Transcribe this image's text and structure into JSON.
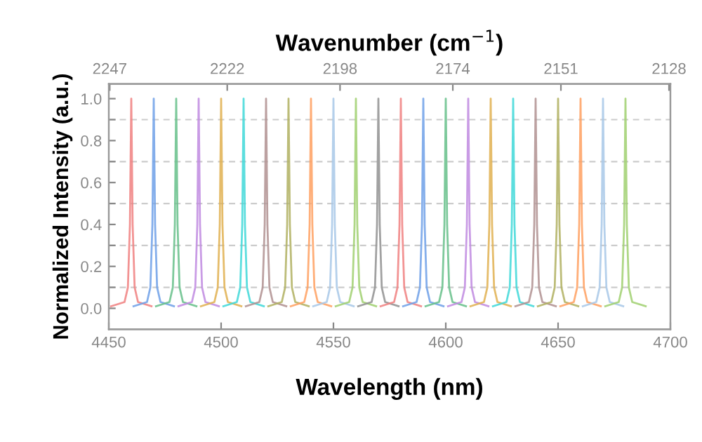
{
  "chart_data": {
    "type": "line",
    "xlabel": "Wavelength (nm)",
    "ylabel": "Normalized Intensity (a.u.)",
    "x2label": "Wavenumber (cm$^{−1}$)",
    "xlim": [
      4450,
      4700
    ],
    "xticks": [
      4450,
      4500,
      4550,
      4600,
      4650,
      4700
    ],
    "x2lim": [
      2247.2,
      2127.7
    ],
    "x2ticks": [
      2247,
      2222,
      2198,
      2174,
      2151,
      2128
    ],
    "ylim": [
      -0.1,
      1.07
    ],
    "yticks": [
      {
        "value": 0,
        "label": "0.0"
      },
      {
        "value": 0.1,
        "label": null
      },
      0.2,
      {
        "value": 0.3,
        "label": null
      },
      0.4,
      {
        "value": 0.5,
        "label": null
      },
      0.6,
      {
        "value": 0.7,
        "label": null
      },
      0.8,
      {
        "value": 0.9,
        "label": null
      },
      {
        "value": 1,
        "label": "1.0"
      }
    ],
    "grid": "y",
    "legend": false,
    "marker": "none",
    "line_style": "solid",
    "series": [
      {
        "color": "#f08080",
        "x": [
          4451,
          4457,
          4458.5,
          4459.4,
          4460,
          4460.6,
          4461.5,
          4463,
          4469
        ],
        "values": [
          0.01,
          0.03,
          0.1,
          0.4,
          1,
          0.4,
          0.1,
          0.03,
          0.01
        ]
      },
      {
        "color": "#6fa0e8",
        "x": [
          4461,
          4467,
          4468.5,
          4469.4,
          4470,
          4470.6,
          4471.5,
          4473,
          4479
        ],
        "values": [
          0.01,
          0.03,
          0.1,
          0.4,
          1,
          0.4,
          0.1,
          0.03,
          0.01
        ]
      },
      {
        "color": "#66c08a",
        "x": [
          4471,
          4477,
          4478.5,
          4479.4,
          4480,
          4480.6,
          4481.5,
          4483,
          4489
        ],
        "values": [
          0.01,
          0.03,
          0.1,
          0.4,
          1,
          0.4,
          0.1,
          0.03,
          0.01
        ]
      },
      {
        "color": "#c08ae0",
        "x": [
          4481,
          4487,
          4488.5,
          4489.4,
          4490,
          4490.6,
          4491.5,
          4493,
          4499
        ],
        "values": [
          0.01,
          0.03,
          0.1,
          0.4,
          1,
          0.4,
          0.1,
          0.03,
          0.01
        ]
      },
      {
        "color": "#e0b050",
        "x": [
          4491,
          4497,
          4498.5,
          4499.4,
          4500,
          4500.6,
          4501.5,
          4503,
          4509
        ],
        "values": [
          0.01,
          0.03,
          0.1,
          0.4,
          1,
          0.4,
          0.1,
          0.03,
          0.01
        ]
      },
      {
        "color": "#40d8d8",
        "x": [
          4501,
          4507,
          4508.5,
          4509.4,
          4510,
          4510.6,
          4511.5,
          4513,
          4519
        ],
        "values": [
          0.01,
          0.03,
          0.1,
          0.4,
          1,
          0.4,
          0.1,
          0.03,
          0.01
        ]
      },
      {
        "color": "#b09090",
        "x": [
          4511,
          4517,
          4518.5,
          4519.4,
          4520,
          4520.6,
          4521.5,
          4523,
          4529
        ],
        "values": [
          0.01,
          0.03,
          0.1,
          0.4,
          1,
          0.4,
          0.1,
          0.03,
          0.01
        ]
      },
      {
        "color": "#b0b060",
        "x": [
          4521,
          4527,
          4528.5,
          4529.4,
          4530,
          4530.6,
          4531.5,
          4533,
          4539
        ],
        "values": [
          0.01,
          0.03,
          0.1,
          0.4,
          1,
          0.4,
          0.1,
          0.03,
          0.01
        ]
      },
      {
        "color": "#ffa060",
        "x": [
          4531,
          4537,
          4538.5,
          4539.4,
          4540,
          4540.6,
          4541.5,
          4543,
          4549
        ],
        "values": [
          0.01,
          0.03,
          0.1,
          0.4,
          1,
          0.4,
          0.1,
          0.03,
          0.01
        ]
      },
      {
        "color": "#a8c8e8",
        "x": [
          4541,
          4547,
          4548.5,
          4549.4,
          4550,
          4550.6,
          4551.5,
          4553,
          4559
        ],
        "values": [
          0.01,
          0.03,
          0.1,
          0.4,
          1,
          0.4,
          0.1,
          0.03,
          0.01
        ]
      },
      {
        "color": "#a0d070",
        "x": [
          4551,
          4557,
          4558.5,
          4559.4,
          4560,
          4560.6,
          4561.5,
          4563,
          4569
        ],
        "values": [
          0.01,
          0.03,
          0.1,
          0.4,
          1,
          0.4,
          0.1,
          0.03,
          0.01
        ]
      },
      {
        "color": "#909090",
        "x": [
          4561,
          4567,
          4568.5,
          4569.4,
          4570,
          4570.6,
          4571.5,
          4573,
          4579
        ],
        "values": [
          0.01,
          0.03,
          0.1,
          0.4,
          1,
          0.4,
          0.1,
          0.03,
          0.01
        ]
      },
      {
        "color": "#f08080",
        "x": [
          4571,
          4577,
          4578.5,
          4579.4,
          4580,
          4580.6,
          4581.5,
          4583,
          4589
        ],
        "values": [
          0.01,
          0.03,
          0.1,
          0.4,
          1,
          0.4,
          0.1,
          0.03,
          0.01
        ]
      },
      {
        "color": "#6fa0e8",
        "x": [
          4581,
          4587,
          4588.5,
          4589.4,
          4590,
          4590.6,
          4591.5,
          4593,
          4599
        ],
        "values": [
          0.01,
          0.03,
          0.1,
          0.4,
          1,
          0.4,
          0.1,
          0.03,
          0.01
        ]
      },
      {
        "color": "#66c08a",
        "x": [
          4591,
          4597,
          4598.5,
          4599.4,
          4600,
          4600.6,
          4601.5,
          4603,
          4609
        ],
        "values": [
          0.01,
          0.03,
          0.1,
          0.4,
          1,
          0.4,
          0.1,
          0.03,
          0.01
        ]
      },
      {
        "color": "#c08ae0",
        "x": [
          4601,
          4607,
          4608.5,
          4609.4,
          4610,
          4610.6,
          4611.5,
          4613,
          4619
        ],
        "values": [
          0.01,
          0.03,
          0.1,
          0.4,
          1,
          0.4,
          0.1,
          0.03,
          0.01
        ]
      },
      {
        "color": "#e0b050",
        "x": [
          4611,
          4617,
          4618.5,
          4619.4,
          4620,
          4620.6,
          4621.5,
          4623,
          4629
        ],
        "values": [
          0.01,
          0.03,
          0.1,
          0.4,
          1,
          0.4,
          0.1,
          0.03,
          0.01
        ]
      },
      {
        "color": "#40d8d8",
        "x": [
          4621,
          4627,
          4628.5,
          4629.4,
          4630,
          4630.6,
          4631.5,
          4633,
          4639
        ],
        "values": [
          0.01,
          0.03,
          0.1,
          0.4,
          1,
          0.4,
          0.1,
          0.03,
          0.01
        ]
      },
      {
        "color": "#b09090",
        "x": [
          4631,
          4637,
          4638.5,
          4639.4,
          4640,
          4640.6,
          4641.5,
          4643,
          4649
        ],
        "values": [
          0.01,
          0.03,
          0.1,
          0.4,
          1,
          0.4,
          0.1,
          0.03,
          0.01
        ]
      },
      {
        "color": "#b0b060",
        "x": [
          4641,
          4647,
          4648.5,
          4649.4,
          4650,
          4650.6,
          4651.5,
          4653,
          4659
        ],
        "values": [
          0.01,
          0.03,
          0.1,
          0.4,
          1,
          0.4,
          0.1,
          0.03,
          0.01
        ]
      },
      {
        "color": "#ffa060",
        "x": [
          4651,
          4657,
          4658.5,
          4659.4,
          4660,
          4660.6,
          4661.5,
          4663,
          4669
        ],
        "values": [
          0.01,
          0.03,
          0.1,
          0.4,
          1,
          0.4,
          0.1,
          0.03,
          0.01
        ]
      },
      {
        "color": "#a8c8e8",
        "x": [
          4661,
          4667,
          4668.5,
          4669.4,
          4670,
          4670.6,
          4671.5,
          4673,
          4679
        ],
        "values": [
          0.01,
          0.03,
          0.1,
          0.4,
          1,
          0.4,
          0.1,
          0.03,
          0.01
        ]
      },
      {
        "color": "#a0d070",
        "x": [
          4671,
          4677,
          4678.5,
          4679.4,
          4680,
          4680.6,
          4681.5,
          4683,
          4689
        ],
        "values": [
          0.01,
          0.03,
          0.1,
          0.4,
          1,
          0.4,
          0.1,
          0.03,
          0.01
        ]
      }
    ]
  }
}
